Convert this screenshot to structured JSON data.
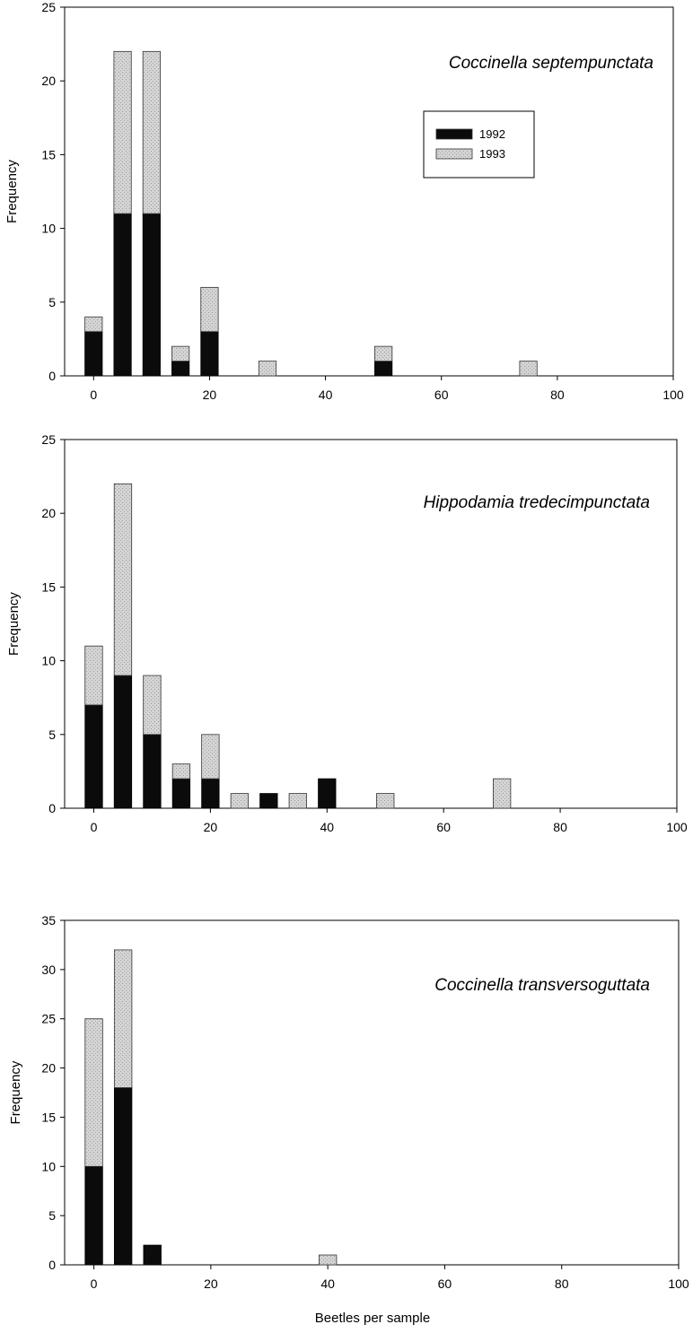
{
  "colors": {
    "series_1992": "#0b0b0b",
    "series_1993": "#d4d4d4",
    "axis": "#000000",
    "background": "#ffffff"
  },
  "xaxis_title": "Beetles per sample",
  "chart_data": [
    {
      "type": "bar",
      "stacked": true,
      "title": "Coccinella septempunctata",
      "ylabel": "Frequency",
      "xlabel": "",
      "xlim": [
        -5,
        100
      ],
      "ylim": [
        0,
        25
      ],
      "xticks": [
        0,
        20,
        40,
        60,
        80,
        100
      ],
      "yticks": [
        0,
        5,
        10,
        15,
        20,
        25
      ],
      "x": [
        0,
        5,
        10,
        15,
        20,
        30,
        50,
        75
      ],
      "series": [
        {
          "name": "1992",
          "values": [
            3,
            11,
            11,
            1,
            3,
            0,
            1,
            0
          ]
        },
        {
          "name": "1993",
          "values": [
            1,
            11,
            11,
            1,
            3,
            1,
            1,
            1
          ]
        }
      ],
      "legend": {
        "position": "upper-right",
        "entries": [
          "1992",
          "1993"
        ]
      }
    },
    {
      "type": "bar",
      "stacked": true,
      "title": "Hippodamia tredecimpunctata",
      "ylabel": "Frequency",
      "xlabel": "",
      "xlim": [
        -5,
        100
      ],
      "ylim": [
        0,
        25
      ],
      "xticks": [
        0,
        20,
        40,
        60,
        80,
        100
      ],
      "yticks": [
        0,
        5,
        10,
        15,
        20,
        25
      ],
      "x": [
        0,
        5,
        10,
        15,
        20,
        25,
        30,
        35,
        40,
        50,
        70
      ],
      "series": [
        {
          "name": "1992",
          "values": [
            7,
            9,
            5,
            2,
            2,
            0,
            1,
            0,
            2,
            0,
            0
          ]
        },
        {
          "name": "1993",
          "values": [
            4,
            13,
            4,
            1,
            3,
            1,
            0,
            1,
            0,
            1,
            2
          ]
        }
      ]
    },
    {
      "type": "bar",
      "stacked": true,
      "title": "Coccinella transversoguttata",
      "ylabel": "Frequency",
      "xlabel": "Beetles per sample",
      "xlim": [
        -5,
        100
      ],
      "ylim": [
        0,
        35
      ],
      "xticks": [
        0,
        20,
        40,
        60,
        80,
        100
      ],
      "yticks": [
        0,
        5,
        10,
        15,
        20,
        25,
        30,
        35
      ],
      "x": [
        0,
        5,
        10,
        40
      ],
      "series": [
        {
          "name": "1992",
          "values": [
            10,
            18,
            2,
            0
          ]
        },
        {
          "name": "1993",
          "values": [
            15,
            14,
            0,
            1
          ]
        }
      ]
    }
  ]
}
